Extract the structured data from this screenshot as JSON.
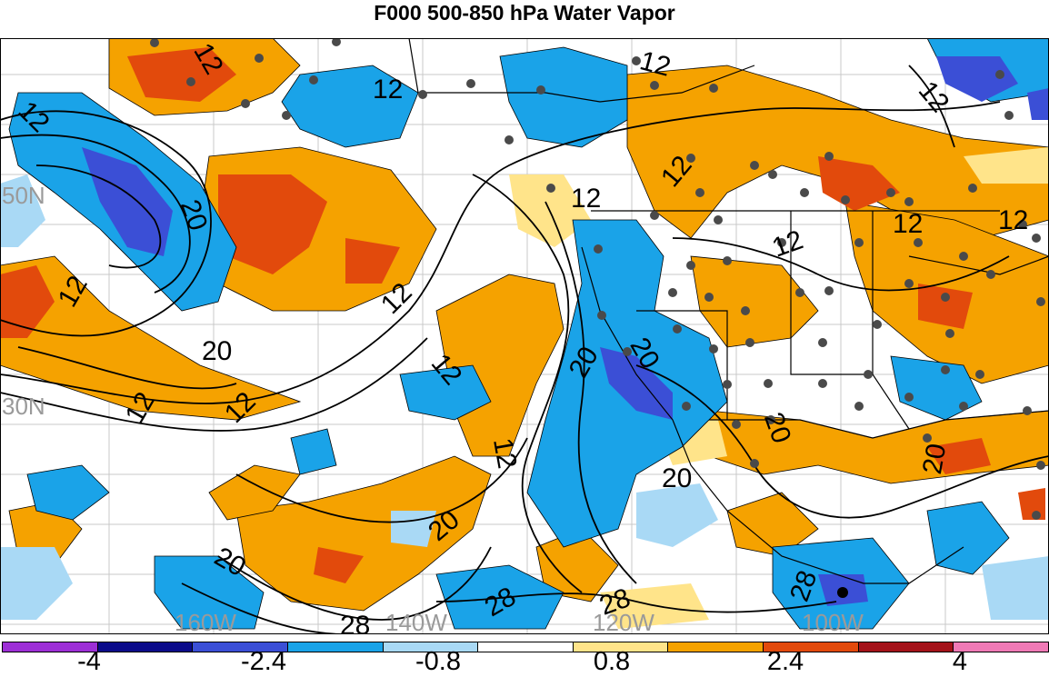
{
  "title": "F000 500-850 hPa Water Vapor",
  "map": {
    "lat_labels": [
      "50N",
      "30N"
    ],
    "lon_labels": [
      "160W",
      "140W",
      "120W",
      "100W"
    ],
    "contour_values": [
      "12",
      "20",
      "28"
    ],
    "contour_color": "#000000",
    "graticule_color": "#c8c8c8",
    "ocean_neutral_color": "#ffffff"
  },
  "colorbar": {
    "colors": [
      "#9d2fd6",
      "#0b0b8a",
      "#3b4fd6",
      "#1aa3e8",
      "#a9d9f5",
      "#ffffff",
      "#ffe48a",
      "#f5a200",
      "#e24a0c",
      "#a4121a",
      "#f07ab6"
    ],
    "tick_labels": [
      "-4",
      "-2.4",
      "-0.8",
      "0.8",
      "2.4",
      "4"
    ]
  }
}
